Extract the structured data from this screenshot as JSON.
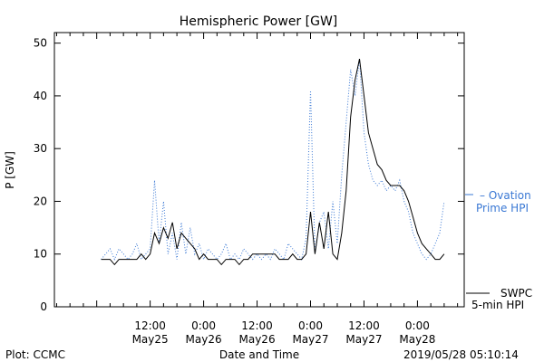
{
  "chart_data": {
    "type": "line",
    "title": "Hemispheric Power [GW]",
    "ylabel": "P [GW]",
    "xlabel": "Date and Time",
    "ylim": [
      0,
      52
    ],
    "xlim_hours": [
      -9.5,
      82.5
    ],
    "yticks": [
      0,
      10,
      20,
      30,
      40,
      50
    ],
    "xticks": [
      {
        "hour": 12,
        "time": "12:00",
        "date": "May25"
      },
      {
        "hour": 24,
        "time": "0:00",
        "date": "May26"
      },
      {
        "hour": 36,
        "time": "12:00",
        "date": "May26"
      },
      {
        "hour": 48,
        "time": "0:00",
        "date": "May27"
      },
      {
        "hour": 60,
        "time": "12:00",
        "date": "May27"
      },
      {
        "hour": 72,
        "time": "0:00",
        "date": "May28"
      }
    ],
    "grid": false,
    "legend": "right",
    "series": [
      {
        "name": "Ovation Prime HPI",
        "color": "#3a78d4",
        "style": "dotted",
        "x": [
          1,
          2,
          3,
          4,
          5,
          6,
          7,
          8,
          9,
          10,
          11,
          12,
          13,
          14,
          15,
          16,
          17,
          18,
          19,
          20,
          21,
          22,
          23,
          24,
          25,
          26,
          27,
          28,
          29,
          30,
          31,
          32,
          33,
          34,
          35,
          36,
          37,
          38,
          39,
          40,
          41,
          42,
          43,
          44,
          45,
          46,
          47,
          48,
          49,
          50,
          51,
          52,
          53,
          54,
          55,
          56,
          57,
          58,
          59,
          60,
          61,
          62,
          63,
          64,
          65,
          66,
          67,
          68,
          69,
          70,
          71,
          72,
          73,
          74,
          75,
          76,
          77,
          78
        ],
        "values": [
          9,
          10,
          11,
          9,
          11,
          10,
          9,
          10,
          12,
          9,
          10,
          11,
          24,
          12,
          20,
          10,
          14,
          9,
          16,
          10,
          15,
          10,
          12,
          9,
          11,
          10,
          9,
          10,
          12,
          9,
          10,
          9,
          11,
          10,
          9,
          10,
          9,
          10,
          9,
          11,
          10,
          9,
          12,
          11,
          10,
          9,
          13,
          41,
          10,
          16,
          18,
          11,
          20,
          12,
          25,
          35,
          45,
          40,
          47,
          33,
          27,
          24,
          23,
          24,
          22,
          23,
          22,
          24,
          20,
          18,
          14,
          12,
          10,
          9,
          10,
          12,
          14,
          20
        ]
      },
      {
        "name": "SWPC 5-min HPI",
        "color": "#000000",
        "style": "solid",
        "x": [
          1,
          2,
          3,
          4,
          5,
          6,
          7,
          8,
          9,
          10,
          11,
          12,
          13,
          14,
          15,
          16,
          17,
          18,
          19,
          20,
          21,
          22,
          23,
          24,
          25,
          26,
          27,
          28,
          29,
          30,
          31,
          32,
          33,
          34,
          35,
          36,
          37,
          38,
          39,
          40,
          41,
          42,
          43,
          44,
          45,
          46,
          47,
          48,
          49,
          50,
          51,
          52,
          53,
          54,
          55,
          56,
          57,
          58,
          59,
          60,
          61,
          62,
          63,
          64,
          65,
          66,
          67,
          68,
          69,
          70,
          71,
          72,
          73,
          74,
          75,
          76,
          77,
          78
        ],
        "values": [
          9,
          9,
          9,
          8,
          9,
          9,
          9,
          9,
          9,
          10,
          9,
          10,
          14,
          12,
          15,
          13,
          16,
          11,
          14,
          13,
          12,
          11,
          9,
          10,
          9,
          9,
          9,
          8,
          9,
          9,
          9,
          8,
          9,
          9,
          10,
          10,
          10,
          10,
          10,
          10,
          9,
          9,
          9,
          10,
          9,
          9,
          10,
          18,
          10,
          16,
          11,
          18,
          10,
          9,
          14,
          22,
          36,
          43,
          47,
          40,
          33,
          30,
          27,
          26,
          24,
          23,
          23,
          23,
          22,
          20,
          17,
          14,
          12,
          11,
          10,
          9,
          9,
          10
        ]
      }
    ]
  },
  "legend": {
    "ovation_line1": "– Ovation",
    "ovation_line2": "Prime HPI",
    "swpc_line1": "SWPC",
    "swpc_line2": "5-min HPI"
  },
  "footer": {
    "left": "Plot: CCMC",
    "right": "2019/05/28 05:10:14"
  },
  "colors": {
    "ovation": "#3a78d4",
    "swpc": "#000000"
  }
}
